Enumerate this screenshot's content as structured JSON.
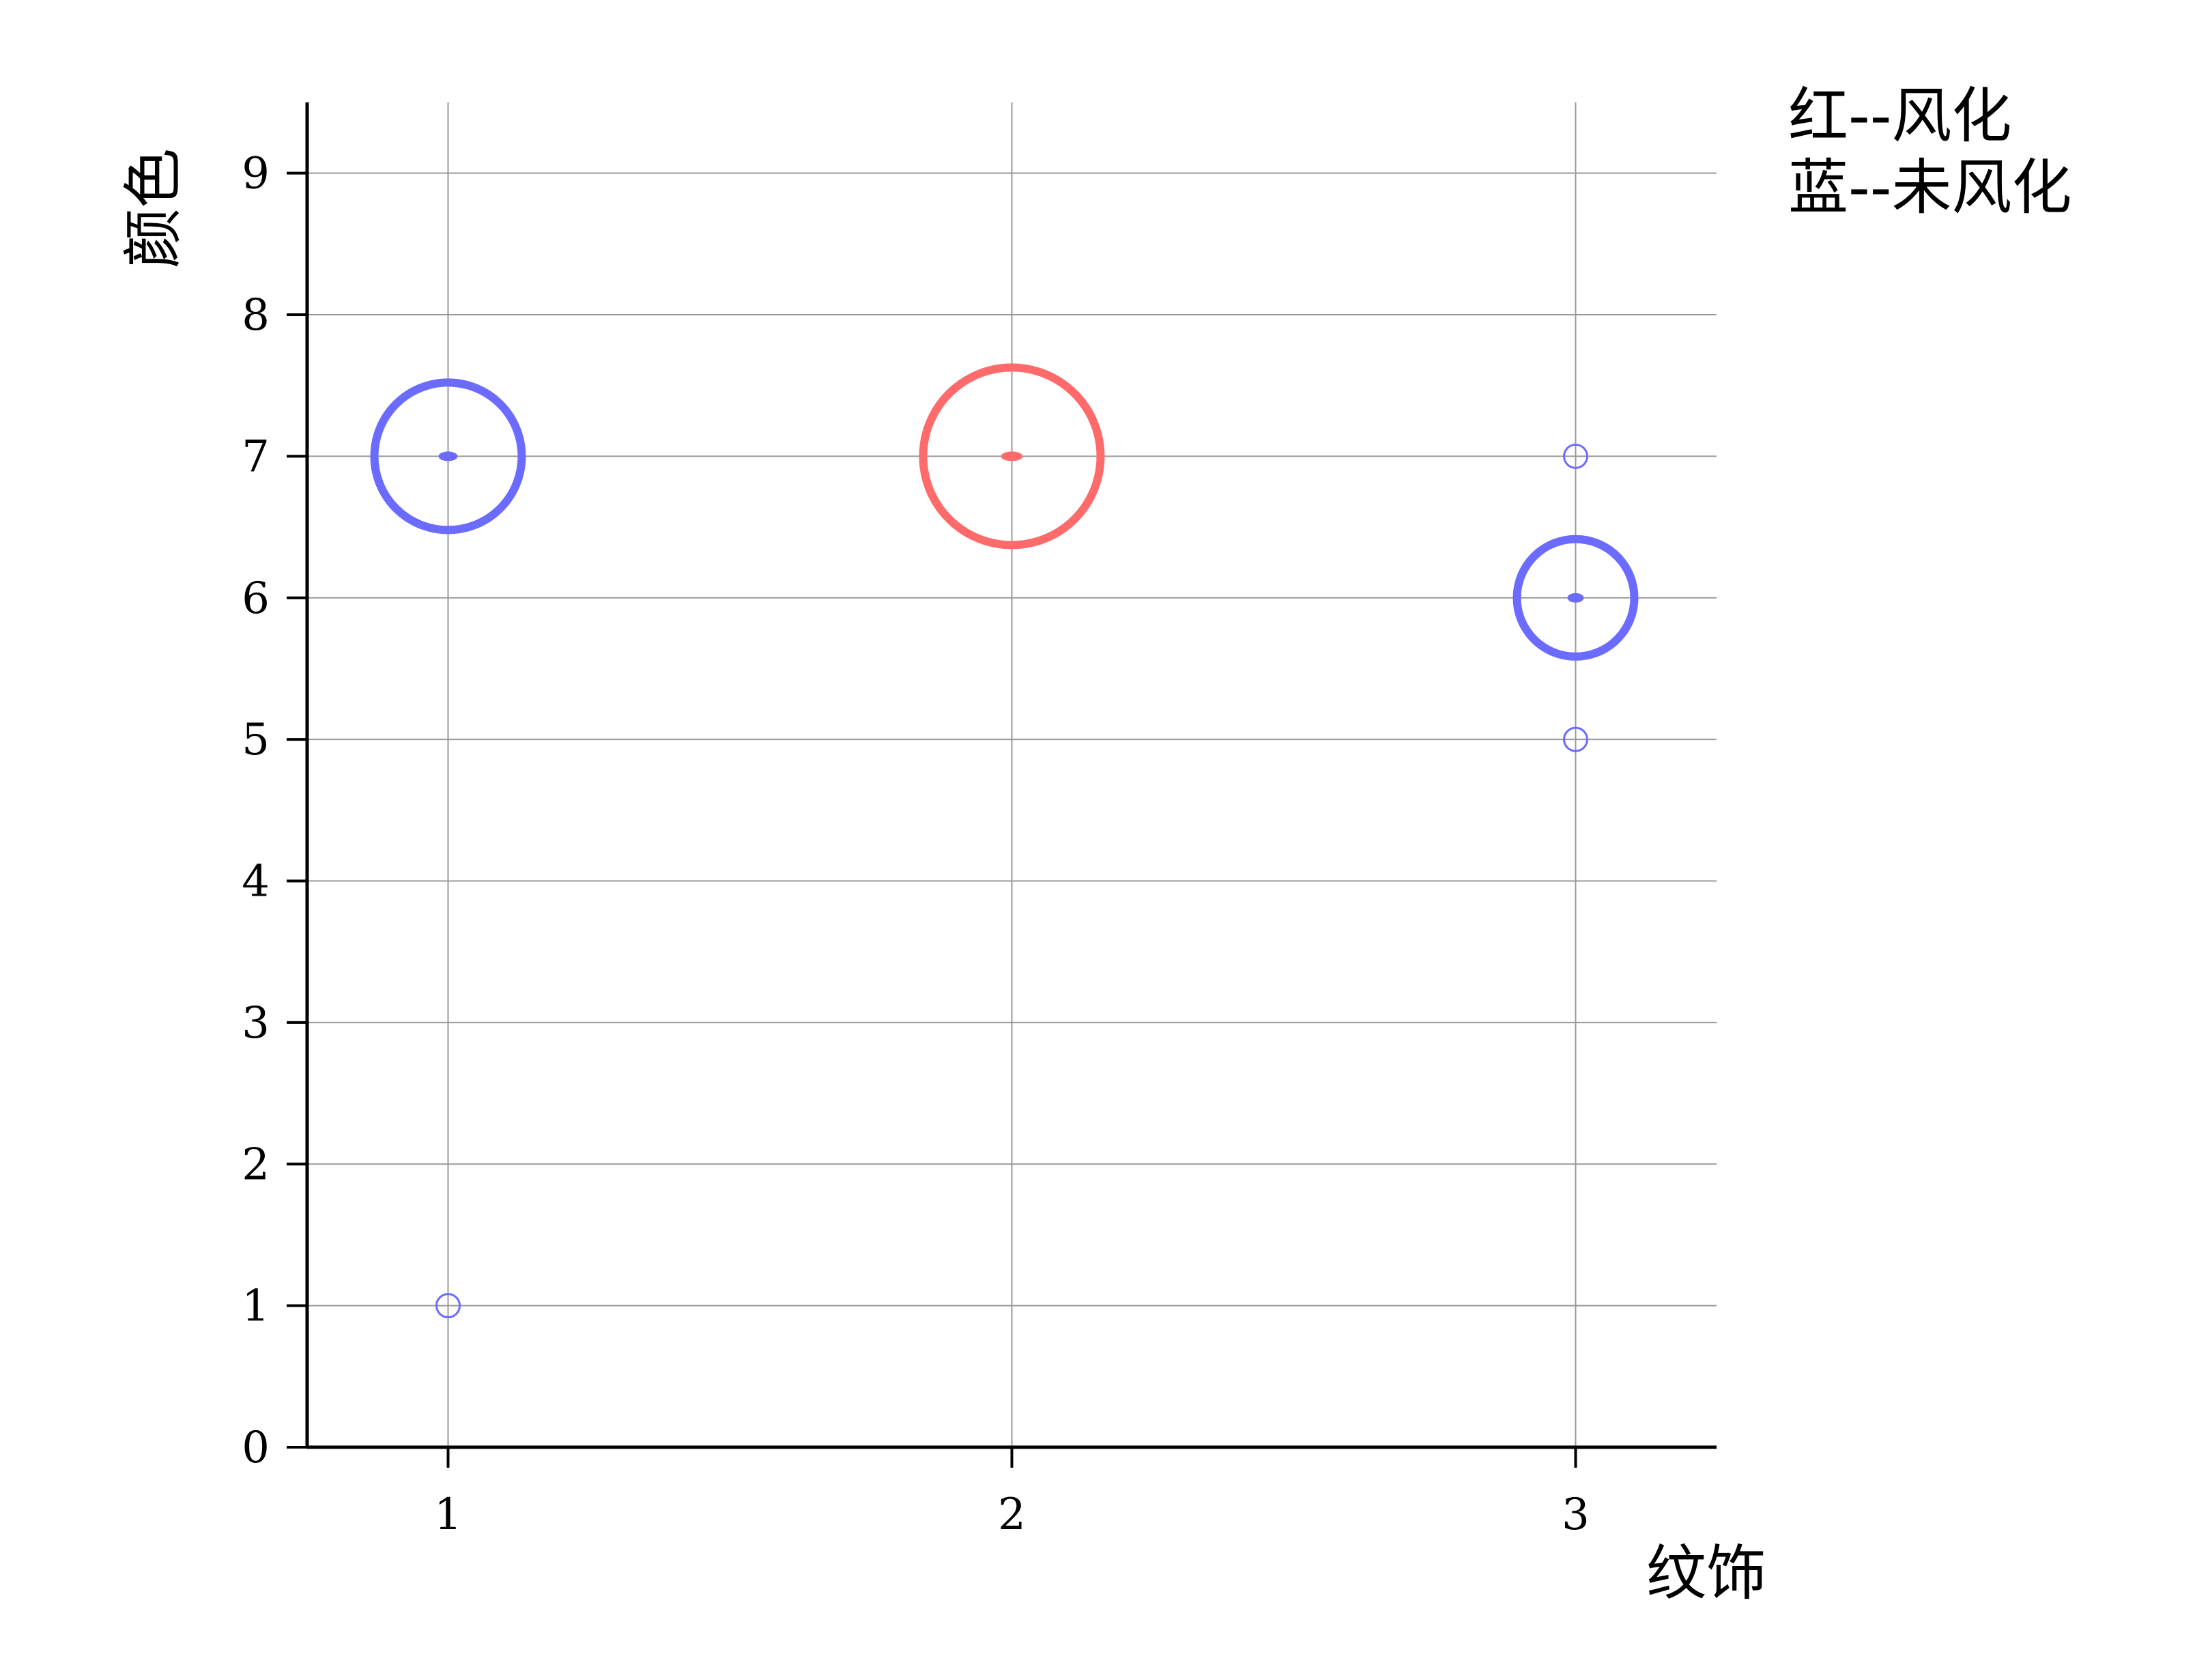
{
  "chart_data": {
    "type": "scatter",
    "title": "",
    "xlabel": "纹饰",
    "ylabel": "颜色",
    "xlim": [
      0.75,
      3.25
    ],
    "ylim": [
      0,
      9.5
    ],
    "xticks": [
      "1",
      "2",
      "3"
    ],
    "yticks": [
      "0",
      "1",
      "2",
      "3",
      "4",
      "5",
      "6",
      "7",
      "8",
      "9"
    ],
    "grid": true,
    "annotations": [
      "红--风化",
      "蓝--未风化"
    ],
    "series": [
      {
        "color": "#ff6b6b",
        "points": [
          {
            "x": 2,
            "y": 7,
            "size": 5
          }
        ]
      },
      {
        "color": "#6b6bff",
        "points": [
          {
            "x": 1,
            "y": 7,
            "size": 4
          },
          {
            "x": 1,
            "y": 1,
            "size": 1
          },
          {
            "x": 3,
            "y": 7,
            "size": 1
          },
          {
            "x": 3,
            "y": 6,
            "size": 3
          },
          {
            "x": 3,
            "y": 5,
            "size": 1
          }
        ]
      }
    ]
  }
}
